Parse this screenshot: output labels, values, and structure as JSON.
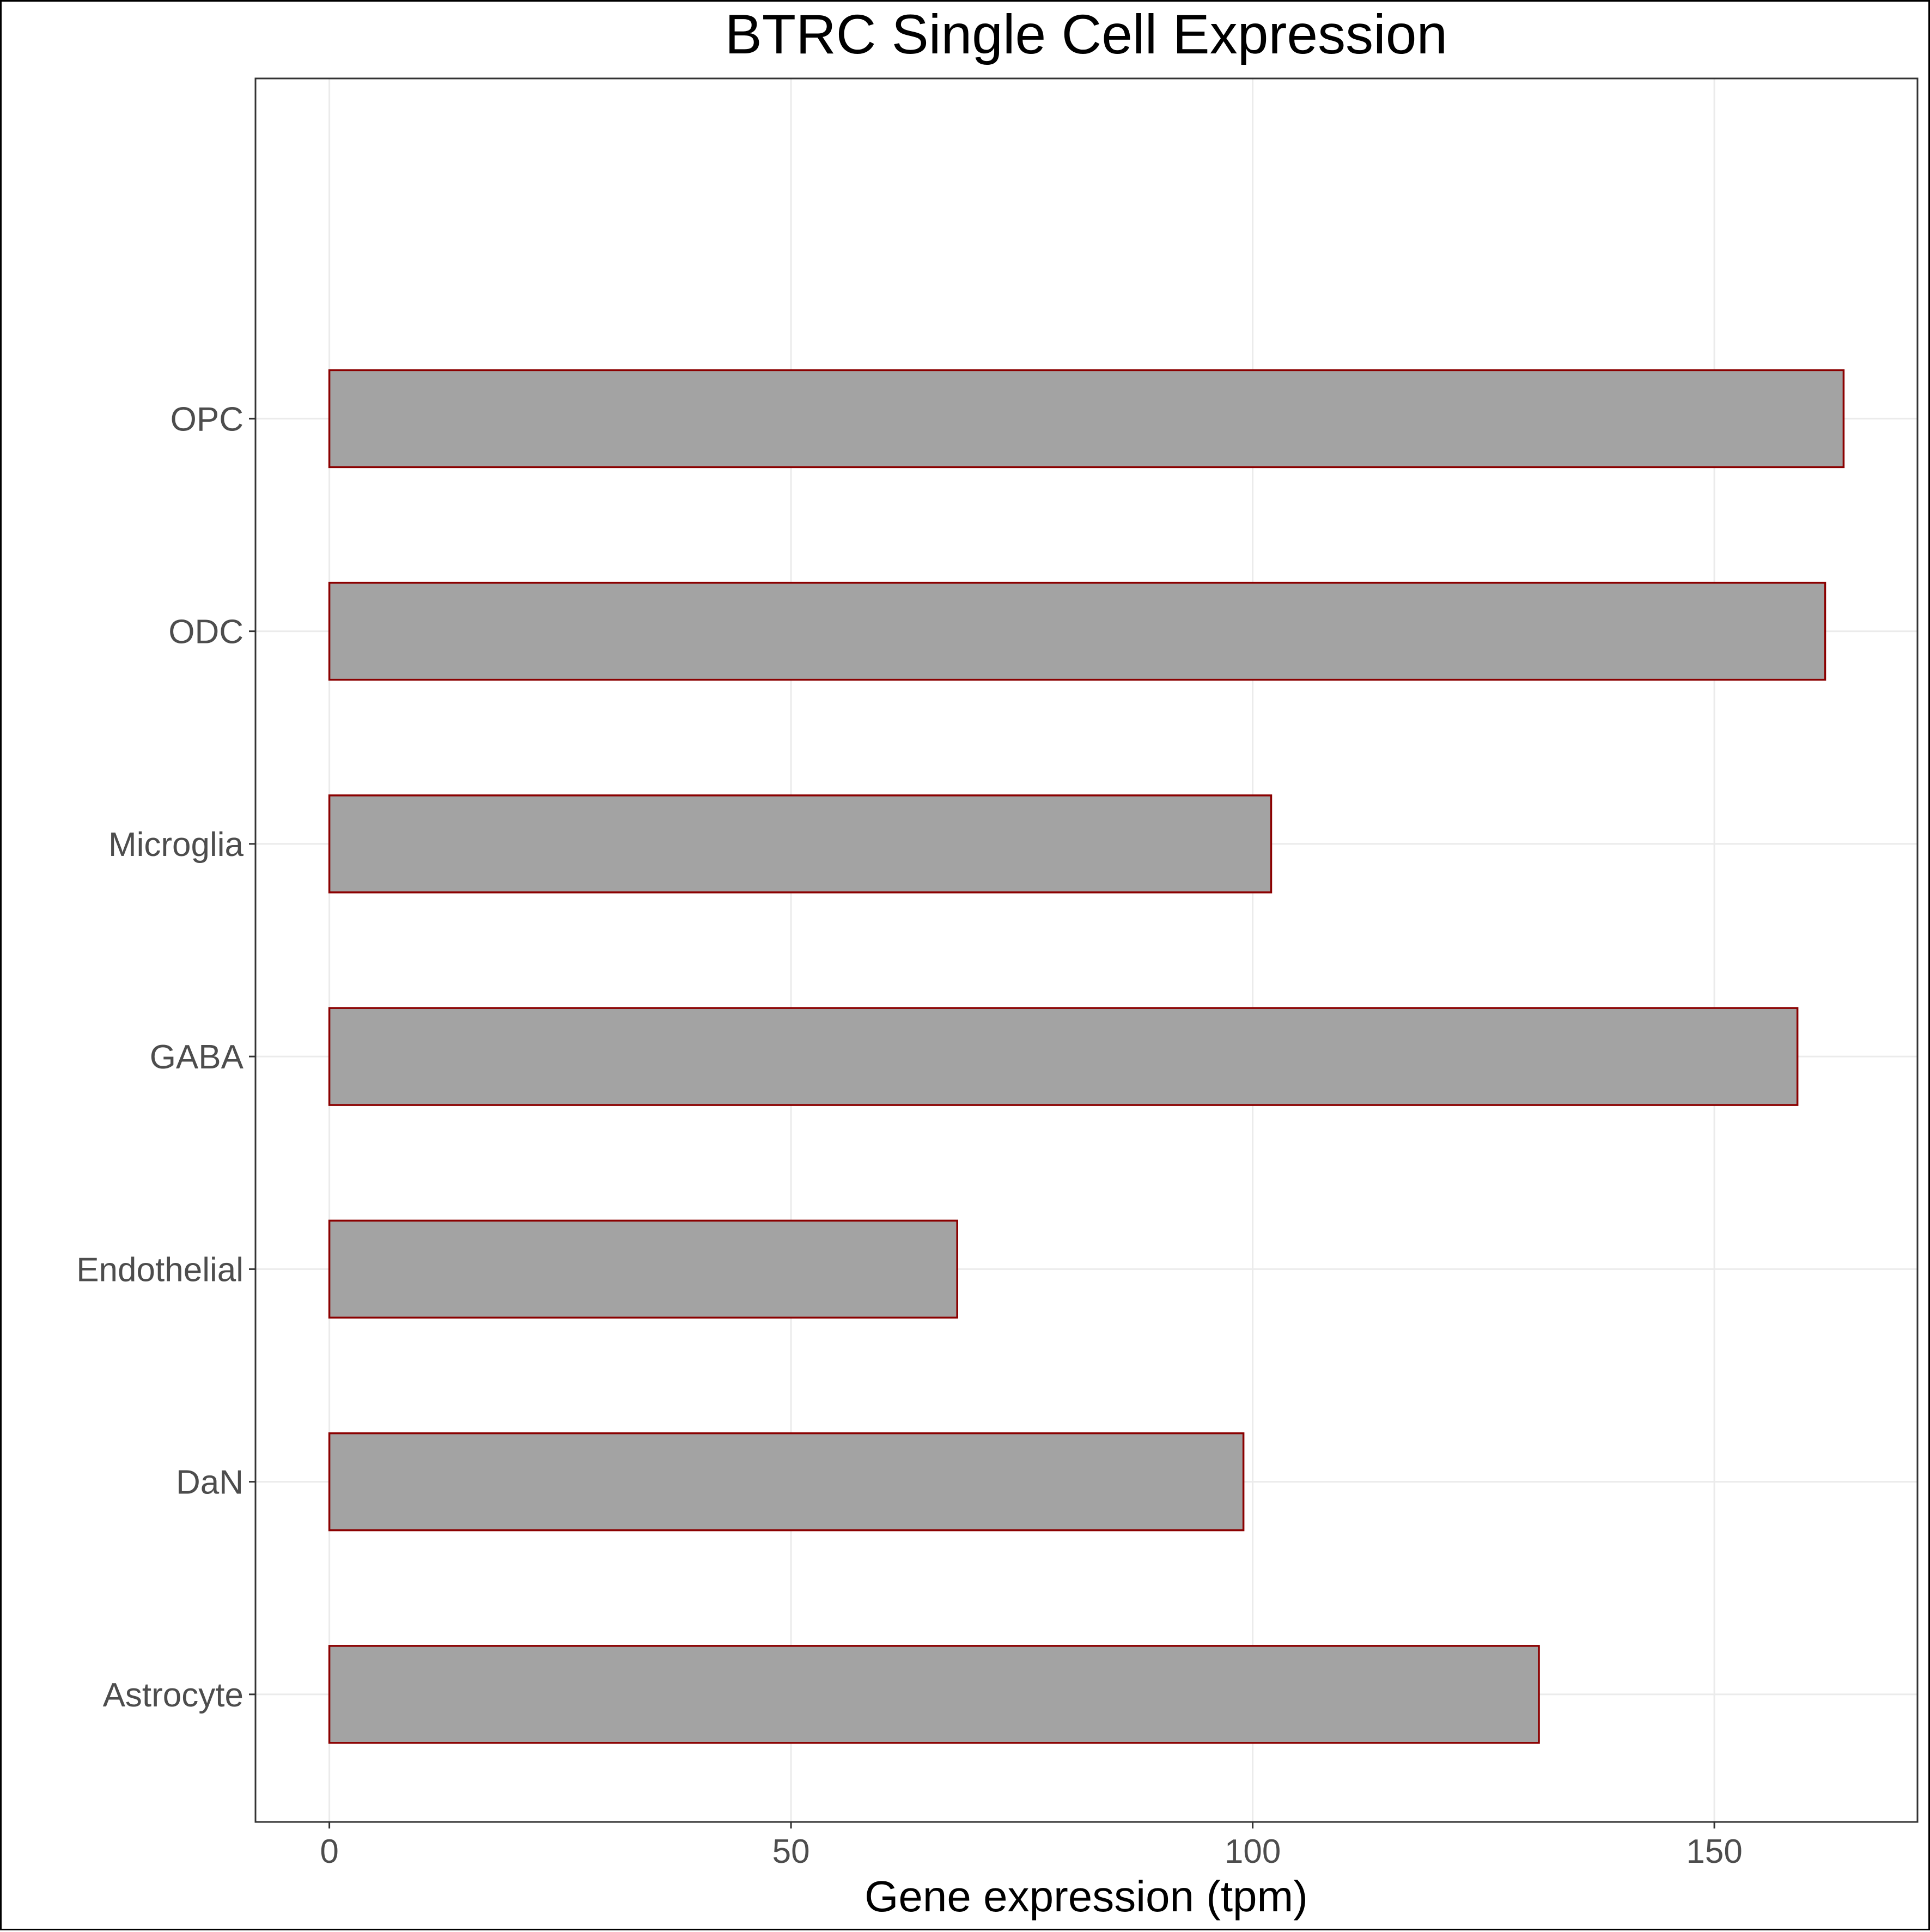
{
  "chart_data": {
    "type": "bar",
    "orientation": "horizontal",
    "title": "BTRC Single Cell Expression",
    "xlabel": "Gene expression (tpm)",
    "ylabel": "",
    "categories": [
      "Astrocyte",
      "DaN",
      "Endothelial",
      "GABA",
      "Microglia",
      "ODC",
      "OPC"
    ],
    "values": [
      131,
      99,
      68,
      159,
      102,
      162,
      164
    ],
    "xlim": [
      -8,
      172
    ],
    "xticks": [
      0,
      50,
      100,
      150
    ],
    "grid": true,
    "legend": "none",
    "colors": {
      "bar_fill": "#a3a3a3",
      "bar_outline": "#8b0000",
      "grid": "#ebebeb",
      "panel_border": "#333333"
    }
  }
}
